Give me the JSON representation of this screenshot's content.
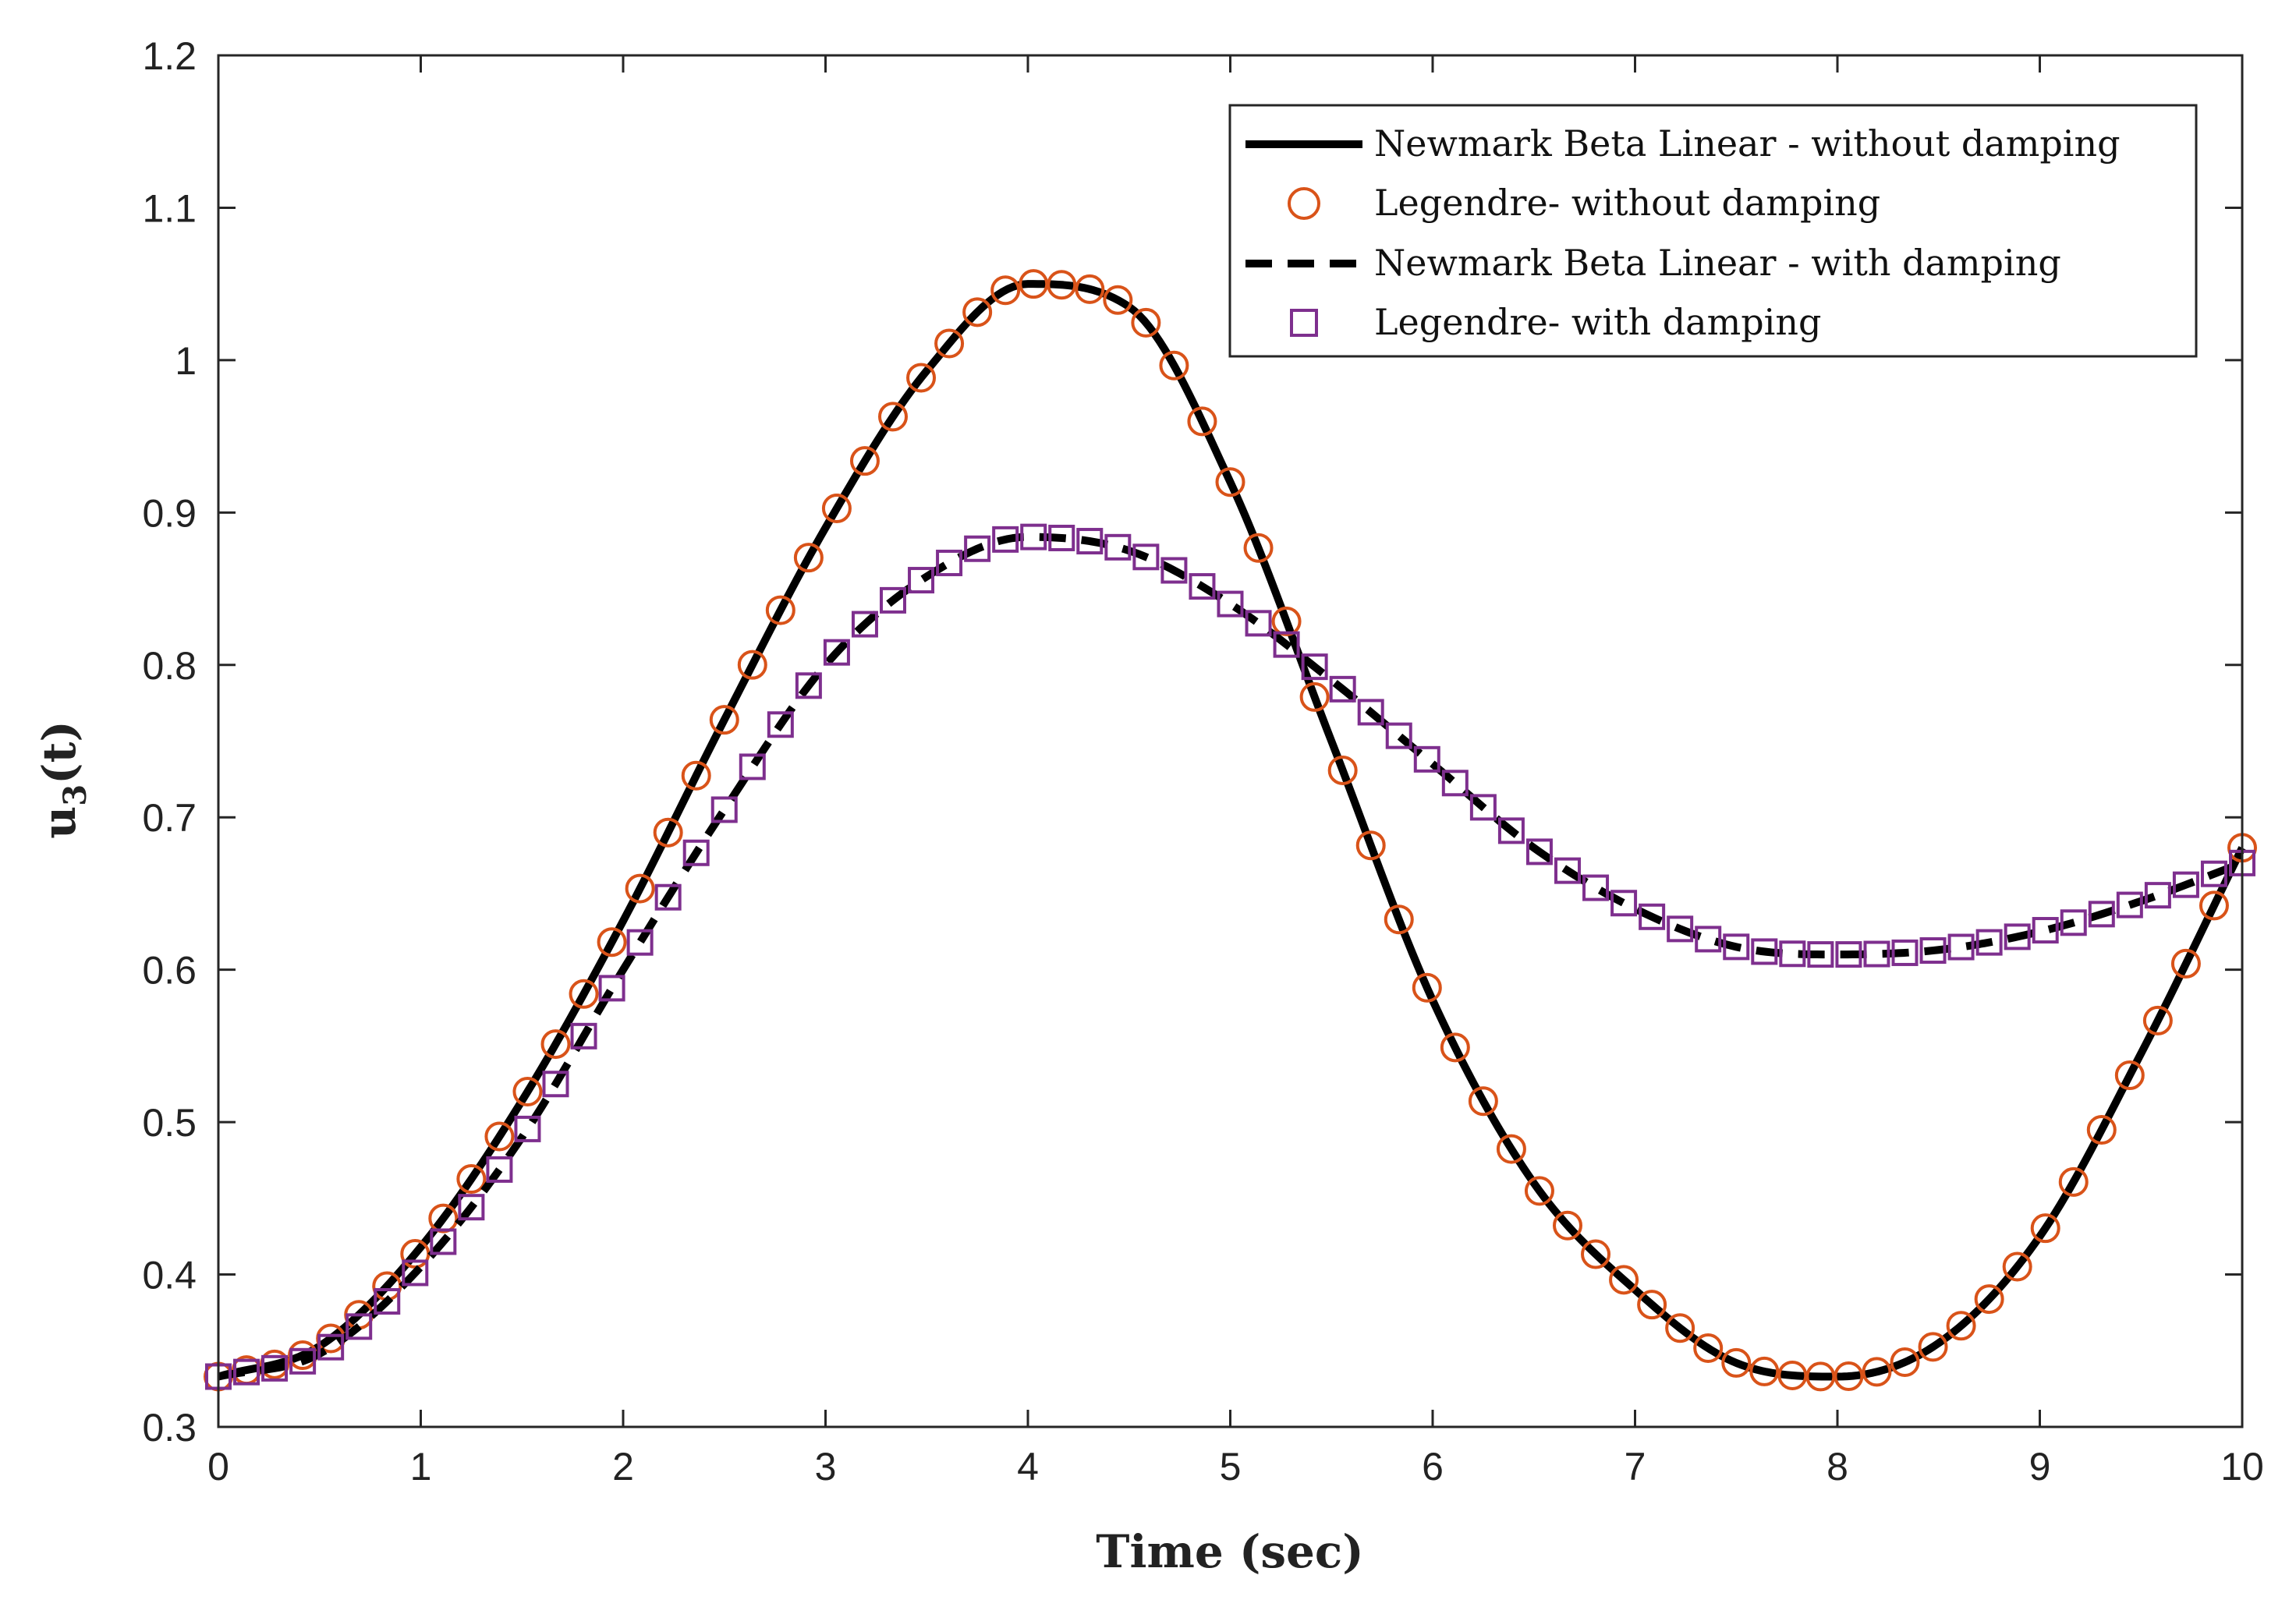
{
  "chart_data": {
    "type": "line",
    "title": "",
    "xlabel": "Time (sec)",
    "ylabel": {
      "main": "u",
      "sub": "3",
      "suffix": "(t)"
    },
    "xlim": [
      0,
      10
    ],
    "ylim": [
      0.3,
      1.2
    ],
    "grid": false,
    "legend_position": "top-right",
    "x_ticks": [
      0,
      1,
      2,
      3,
      4,
      5,
      6,
      7,
      8,
      9,
      10
    ],
    "x_tick_labels": [
      "0",
      "1",
      "2",
      "3",
      "4",
      "5",
      "6",
      "7",
      "8",
      "9",
      "10"
    ],
    "y_ticks": [
      0.3,
      0.4,
      0.5,
      0.6,
      0.7,
      0.8,
      0.9,
      1.0,
      1.1,
      1.2
    ],
    "y_tick_labels": [
      "0.3",
      "0.4",
      "0.5",
      "0.6",
      "0.7",
      "0.8",
      "0.9",
      "1",
      "1.1",
      "1.2"
    ],
    "series": [
      {
        "name": "Newmark Beta Linear - without damping",
        "style": "solid-line",
        "color": "#000000",
        "x": [
          0,
          0.5,
          1,
          1.5,
          2,
          2.5,
          3,
          3.5,
          4,
          4.5,
          5,
          5.5,
          6,
          6.5,
          7,
          7.5,
          8,
          8.5,
          9,
          9.5,
          10
        ],
        "y": [
          0.333,
          0.353,
          0.418,
          0.514,
          0.632,
          0.764,
          0.89,
          0.993,
          1.05,
          1.035,
          0.92,
          0.75,
          0.58,
          0.46,
          0.39,
          0.342,
          0.333,
          0.355,
          0.425,
          0.545,
          0.68
        ]
      },
      {
        "name": "Legendre- without damping",
        "style": "circle-markers",
        "color": "#d95319",
        "x": [
          0,
          0.5,
          1,
          1.5,
          2,
          2.5,
          3,
          3.5,
          4,
          4.5,
          5,
          5.5,
          6,
          6.5,
          7,
          7.5,
          8,
          8.5,
          9,
          9.5,
          10
        ],
        "y": [
          0.333,
          0.353,
          0.418,
          0.514,
          0.632,
          0.764,
          0.89,
          0.993,
          1.05,
          1.035,
          0.92,
          0.75,
          0.58,
          0.46,
          0.39,
          0.342,
          0.333,
          0.355,
          0.425,
          0.545,
          0.68
        ]
      },
      {
        "name": "Newmark Beta Linear - with damping",
        "style": "dashed-line",
        "color": "#000000",
        "x": [
          0,
          0.5,
          1,
          1.5,
          2,
          2.5,
          3,
          3.5,
          4,
          4.5,
          5,
          5.5,
          6,
          6.5,
          7,
          7.5,
          8,
          8.5,
          9,
          9.5,
          10
        ],
        "y": [
          0.333,
          0.348,
          0.405,
          0.49,
          0.6,
          0.705,
          0.8,
          0.858,
          0.884,
          0.875,
          0.84,
          0.79,
          0.735,
          0.68,
          0.64,
          0.615,
          0.61,
          0.613,
          0.625,
          0.645,
          0.67
        ]
      },
      {
        "name": "Legendre- with damping",
        "style": "square-markers",
        "color": "#7e2f8e",
        "x": [
          0,
          0.5,
          1,
          1.5,
          2,
          2.5,
          3,
          3.5,
          4,
          4.5,
          5,
          5.5,
          6,
          6.5,
          7,
          7.5,
          8,
          8.5,
          9,
          9.5,
          10
        ],
        "y": [
          0.333,
          0.348,
          0.405,
          0.49,
          0.6,
          0.705,
          0.8,
          0.858,
          0.884,
          0.875,
          0.84,
          0.79,
          0.735,
          0.68,
          0.64,
          0.615,
          0.61,
          0.613,
          0.625,
          0.645,
          0.67
        ]
      }
    ]
  }
}
